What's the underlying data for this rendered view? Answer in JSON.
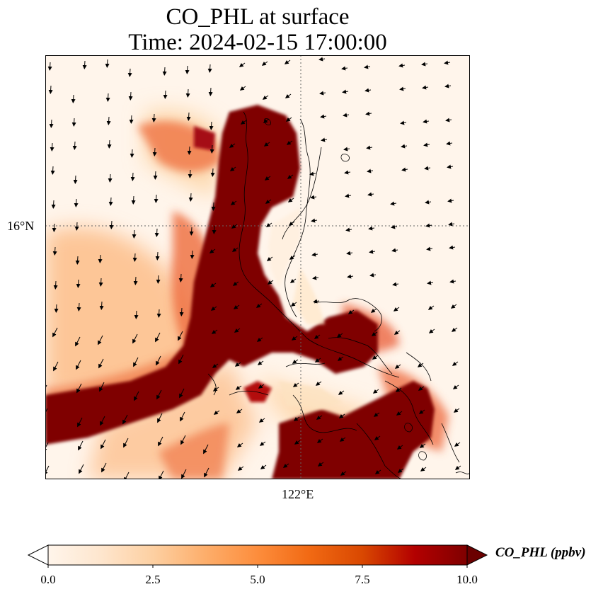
{
  "title": {
    "line1": "CO_PHL at surface",
    "line2": "Time: 2024-02-15 17:00:00"
  },
  "map": {
    "variable": "CO_PHL",
    "level": "surface",
    "lat_tick": "16°N",
    "lon_tick": "122°E",
    "field_color_ramp": [
      "#fff5eb",
      "#fdd3a3",
      "#fd9c5d",
      "#e8512b",
      "#b3100c",
      "#7f0000"
    ]
  },
  "colorbar": {
    "label": "CO_PHL (ppbv)",
    "ticks": [
      "0.0",
      "2.5",
      "5.0",
      "7.5",
      "10.0"
    ],
    "min": 0,
    "max": 10,
    "extend": "both",
    "colors": [
      "#fff5eb",
      "#fee6ce",
      "#fdd0a2",
      "#fdae6b",
      "#fd8d3c",
      "#f16913",
      "#d94801",
      "#b30000",
      "#7f0000"
    ]
  }
}
